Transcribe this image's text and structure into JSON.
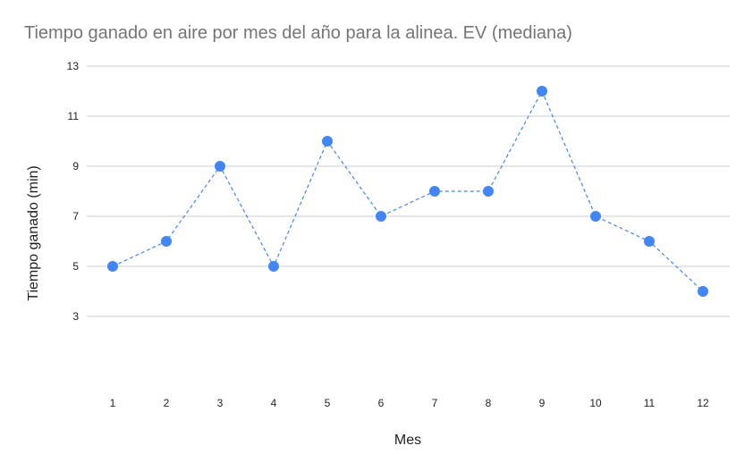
{
  "chart_data": {
    "type": "line",
    "title": "Tiempo ganado en aire por mes del año para la alinea. EV (mediana)",
    "xlabel": "Mes",
    "ylabel": "Tiempo ganado (min)",
    "categories": [
      "1",
      "2",
      "3",
      "4",
      "5",
      "6",
      "7",
      "8",
      "9",
      "10",
      "11",
      "12"
    ],
    "series": [
      {
        "values": [
          5,
          6,
          9,
          5,
          10,
          7,
          8,
          8,
          12,
          7,
          6,
          4
        ]
      }
    ],
    "y_ticks": [
      "3",
      "5",
      "7",
      "9",
      "11",
      "13"
    ],
    "ylim": [
      0,
      13
    ],
    "grid": true,
    "line_style": "dashed",
    "colors": {
      "series": "#4285f4",
      "grid": "#cccccc",
      "title": "#757575"
    }
  }
}
